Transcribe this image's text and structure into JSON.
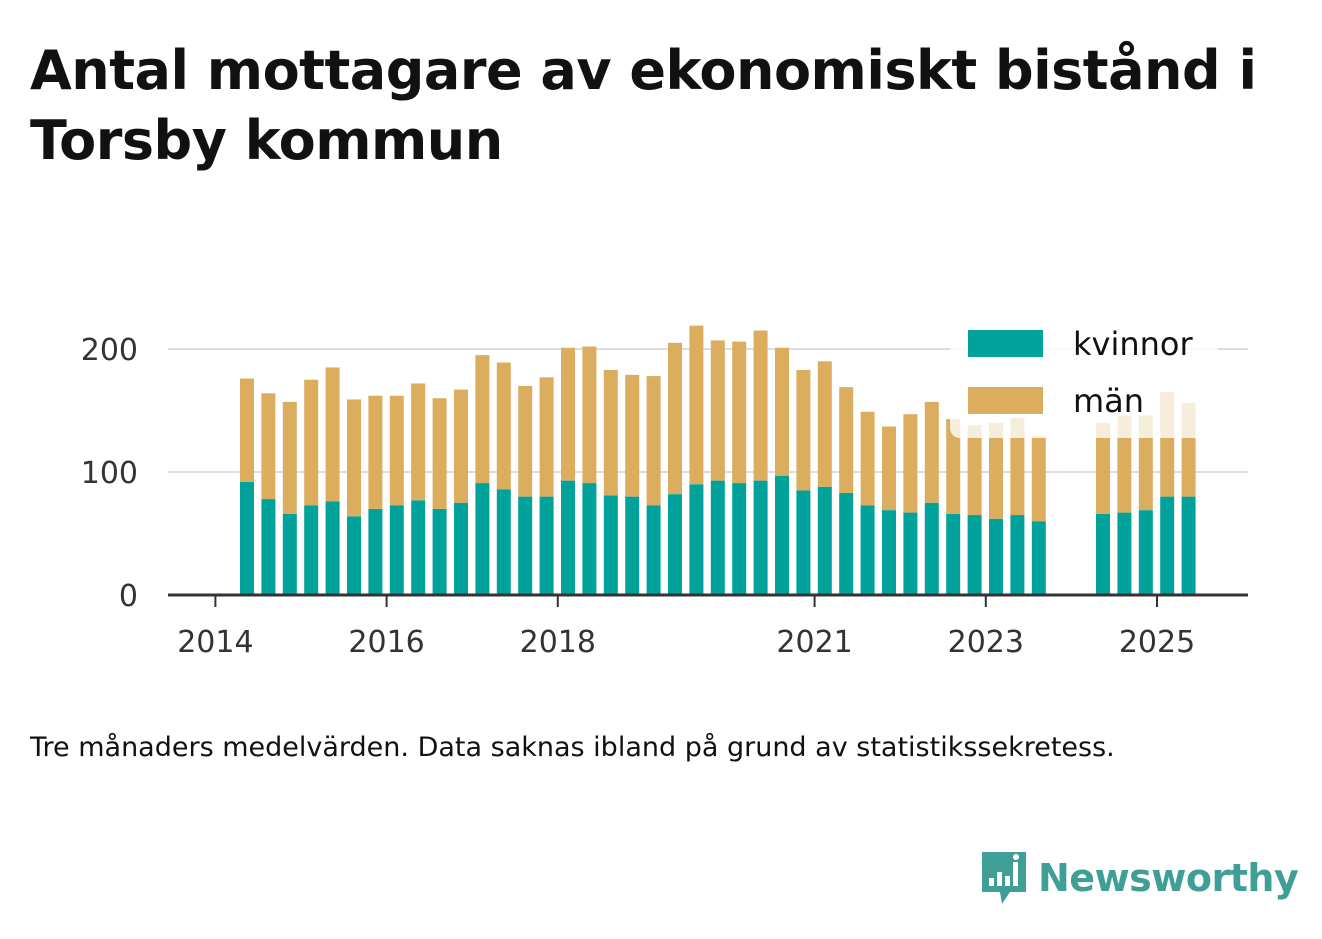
{
  "title": "Antal mottagare av ekonomiskt bistånd i Torsby kommun",
  "caption": "Tre månaders medelvärden. Data saknas ibland på grund av statistikssekretess.",
  "brand": {
    "name": "Newsworthy",
    "color": "#3f9f96",
    "icon": "newsworthy-logo-icon"
  },
  "chart_data": {
    "type": "bar",
    "stacked": true,
    "grid": true,
    "legend_position": "top-right",
    "ylim": [
      0,
      230
    ],
    "yticks": [
      0,
      100,
      200
    ],
    "xticks": [
      {
        "label": "2014",
        "index": -1
      },
      {
        "label": "2016",
        "index": 7
      },
      {
        "label": "2018",
        "index": 15
      },
      {
        "label": "2021",
        "index": 27
      },
      {
        "label": "2023",
        "index": 35
      },
      {
        "label": "2025",
        "index": 43
      }
    ],
    "periods": [
      "2014 Q2",
      "2014 Q3",
      "2014 Q4",
      "2015 Q1",
      "2015 Q2",
      "2015 Q3",
      "2015 Q4",
      "2016 Q1",
      "2016 Q2",
      "2016 Q3",
      "2016 Q4",
      "2017 Q1",
      "2017 Q2",
      "2017 Q3",
      "2017 Q4",
      "2018 Q1",
      "2018 Q2",
      "2018 Q3",
      "2018 Q4",
      "2019 Q1",
      "2019 Q2",
      "2019 Q3",
      "2019 Q4",
      "2020 Q1",
      "2020 Q2",
      "2020 Q3",
      "2020 Q4",
      "2021 Q1",
      "2021 Q2",
      "2021 Q3",
      "2021 Q4",
      "2022 Q1",
      "2022 Q2",
      "2022 Q3",
      "2022 Q4",
      "2023 Q1",
      "2023 Q2",
      "2023 Q3",
      "2023 Q4",
      "2024 Q1",
      "2024 Q2",
      "2024 Q3",
      "2024 Q4",
      "2025 Q1",
      "2025 Q2"
    ],
    "series": [
      {
        "name": "kvinnor",
        "color": "#00a29b",
        "values": [
          92,
          78,
          66,
          73,
          76,
          64,
          70,
          73,
          77,
          70,
          75,
          91,
          86,
          80,
          80,
          93,
          91,
          81,
          80,
          73,
          82,
          90,
          93,
          91,
          93,
          97,
          85,
          88,
          83,
          73,
          69,
          67,
          75,
          66,
          65,
          62,
          65,
          60,
          null,
          null,
          66,
          67,
          69,
          80,
          80
        ]
      },
      {
        "name": "män",
        "color": "#dbad5e",
        "values": [
          84,
          86,
          91,
          102,
          109,
          95,
          92,
          89,
          95,
          90,
          92,
          104,
          103,
          90,
          97,
          108,
          111,
          102,
          99,
          105,
          123,
          129,
          114,
          115,
          122,
          104,
          98,
          102,
          86,
          76,
          68,
          80,
          82,
          77,
          73,
          78,
          79,
          69,
          null,
          null,
          74,
          79,
          77,
          85,
          76
        ]
      }
    ]
  }
}
